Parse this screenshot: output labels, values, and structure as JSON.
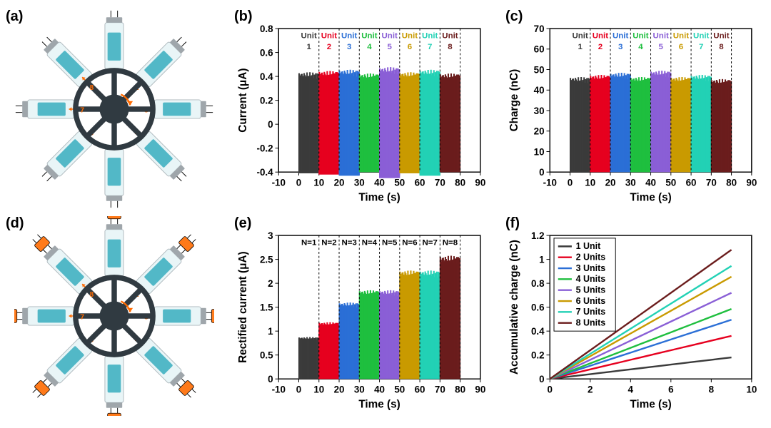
{
  "panels": {
    "a": {
      "label": "(a)"
    },
    "b": {
      "label": "(b)"
    },
    "c": {
      "label": "(c)"
    },
    "d": {
      "label": "(d)"
    },
    "e": {
      "label": "(e)"
    },
    "f": {
      "label": "(f)"
    }
  },
  "unit_colors": [
    "#3b3b3b",
    "#e6001f",
    "#2b6fd6",
    "#1fbf3f",
    "#8a5fd6",
    "#c99a00",
    "#22d1b5",
    "#6b1d1d"
  ],
  "chart_b": {
    "type": "bar",
    "xlabel": "Time (s)",
    "ylabel": "Current (μA)",
    "xlim": [
      -10,
      90
    ],
    "xtick_step": 10,
    "ylim": [
      -0.4,
      0.8
    ],
    "yticks": [
      -0.4,
      -0.2,
      0.0,
      0.2,
      0.4,
      0.6,
      0.8
    ],
    "header_prefix": "Unit",
    "header_numbers": [
      "1",
      "2",
      "3",
      "4",
      "5",
      "6",
      "7",
      "8"
    ],
    "segments_x": [
      [
        0,
        10
      ],
      [
        10,
        20
      ],
      [
        20,
        30
      ],
      [
        30,
        40
      ],
      [
        40,
        50
      ],
      [
        50,
        60
      ],
      [
        60,
        70
      ],
      [
        70,
        80
      ]
    ],
    "amplitude_pos": [
      0.41,
      0.42,
      0.43,
      0.4,
      0.45,
      0.41,
      0.43,
      0.4
    ],
    "amplitude_neg": [
      -0.41,
      -0.42,
      -0.43,
      -0.4,
      -0.45,
      -0.41,
      -0.43,
      -0.4
    ],
    "background": "#ffffff"
  },
  "chart_c": {
    "type": "bar",
    "xlabel": "Time (s)",
    "ylabel": "Charge (nC)",
    "xlim": [
      -10,
      90
    ],
    "xtick_step": 10,
    "ylim": [
      0,
      70
    ],
    "yticks": [
      0,
      10,
      20,
      30,
      40,
      50,
      60,
      70
    ],
    "header_prefix": "Unit",
    "header_numbers": [
      "1",
      "2",
      "3",
      "4",
      "5",
      "6",
      "7",
      "8"
    ],
    "segments_x": [
      [
        0,
        10
      ],
      [
        10,
        20
      ],
      [
        20,
        30
      ],
      [
        30,
        40
      ],
      [
        40,
        50
      ],
      [
        50,
        60
      ],
      [
        60,
        70
      ],
      [
        70,
        80
      ]
    ],
    "values_top": [
      45,
      46,
      47,
      45,
      48,
      45,
      46,
      44
    ],
    "values_bot": [
      0,
      0,
      0,
      0,
      0,
      0,
      0,
      0
    ],
    "background": "#ffffff"
  },
  "chart_e": {
    "type": "bar",
    "xlabel": "Time (s)",
    "ylabel": "Rectified current (μA)",
    "xlim": [
      -10,
      90
    ],
    "xtick_step": 10,
    "ylim": [
      0.0,
      3.0
    ],
    "yticks": [
      0.0,
      0.5,
      1.0,
      1.5,
      2.0,
      2.5,
      3.0
    ],
    "header_labels": [
      "N=1",
      "N=2",
      "N=3",
      "N=4",
      "N=5",
      "N=6",
      "N=7",
      "N=8"
    ],
    "segments_x": [
      [
        0,
        10
      ],
      [
        10,
        20
      ],
      [
        20,
        30
      ],
      [
        30,
        40
      ],
      [
        40,
        50
      ],
      [
        50,
        60
      ],
      [
        60,
        70
      ],
      [
        70,
        80
      ]
    ],
    "values_top": [
      0.85,
      1.15,
      1.55,
      1.8,
      1.8,
      2.2,
      2.2,
      2.5
    ],
    "values_bot": [
      0,
      0,
      0,
      0,
      0,
      0,
      0,
      0
    ],
    "background": "#ffffff"
  },
  "chart_f": {
    "type": "line",
    "xlabel": "Time (s)",
    "ylabel": "Accumulative charge (nC)",
    "xlim": [
      0,
      10
    ],
    "xticks": [
      0,
      2,
      4,
      6,
      8,
      10
    ],
    "ylim": [
      0.0,
      1.2
    ],
    "yticks": [
      0.0,
      0.2,
      0.4,
      0.6,
      0.8,
      1.0,
      1.2
    ],
    "legend_labels": [
      "1 Unit",
      "2 Units",
      "3 Units",
      "4 Units",
      "5 Units",
      "6 Units",
      "7 Units",
      "8 Units"
    ],
    "slopes": [
      0.02,
      0.04,
      0.055,
      0.065,
      0.08,
      0.095,
      0.105,
      0.12
    ],
    "line_width": 2.5,
    "background": "#ffffff"
  },
  "schematic_a": {
    "hub_color": "#303a41",
    "tube_color_outer": "#e9f5f7",
    "tube_color_inner": "#52b8c7",
    "arrow_color": "#ff6a00",
    "electrode_color": "#9fa6ab",
    "num_spokes": 8,
    "rectifiers": false
  },
  "schematic_d": {
    "hub_color": "#303a41",
    "tube_color_outer": "#e9f5f7",
    "tube_color_inner": "#52b8c7",
    "arrow_color": "#ff6a00",
    "electrode_color": "#9fa6ab",
    "rectifier_color": "#ff7a1a",
    "num_spokes": 8,
    "rectifiers": true
  }
}
